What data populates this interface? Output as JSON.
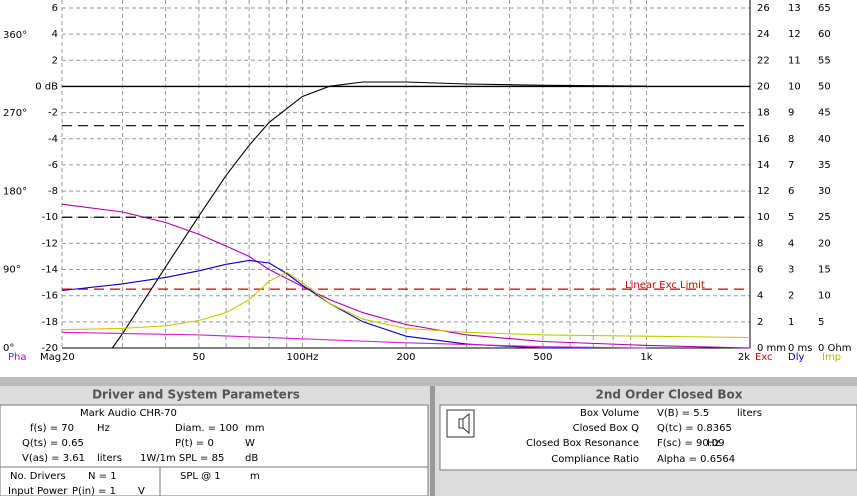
{
  "chart_data": {
    "type": "line",
    "xscale": "log",
    "xlim": [
      20,
      2000
    ],
    "xticks": [
      20,
      50,
      {
        "value": 100,
        "label": "100Hz"
      },
      200,
      500,
      {
        "value": 1000,
        "label": "1k"
      },
      {
        "value": 2000,
        "label": "2k"
      }
    ],
    "xgrid": [
      20,
      30,
      40,
      50,
      60,
      70,
      80,
      90,
      100,
      200,
      300,
      400,
      500,
      600,
      700,
      800,
      900,
      1000,
      2000
    ],
    "ylim": [
      -20,
      6
    ],
    "yticks": [
      -20,
      -18,
      -16,
      -14,
      -12,
      -10,
      -8,
      -6,
      -4,
      -2,
      {
        "value": 0,
        "label": "0 dB"
      },
      2,
      4,
      6
    ],
    "grid": true,
    "phase_lim": [
      0,
      391
    ],
    "phase_ticks": [
      {
        "value": 0,
        "label": "0°"
      },
      {
        "value": 90,
        "label": "90°"
      },
      {
        "value": 180,
        "label": "180°"
      },
      {
        "value": 270,
        "label": "270°"
      },
      {
        "value": 360,
        "label": "360°"
      }
    ],
    "exc_lim": [
      0,
      26
    ],
    "exc_ticks": [
      {
        "value": 0,
        "label": "0 mm"
      },
      2,
      4,
      6,
      8,
      10,
      12,
      14,
      16,
      18,
      20,
      22,
      24,
      26
    ],
    "dly_lim": [
      0,
      13
    ],
    "dly_ticks": [
      {
        "value": 0,
        "label": "0 ms"
      },
      1,
      2,
      3,
      4,
      5,
      6,
      7,
      8,
      9,
      10,
      11,
      12,
      13
    ],
    "imp_lim": [
      0,
      65
    ],
    "imp_ticks": [
      {
        "value": 0,
        "label": "0 Ohm"
      },
      5,
      10,
      15,
      20,
      25,
      30,
      35,
      40,
      45,
      50,
      55,
      60,
      65
    ],
    "axis_names": [
      {
        "text": "Pha",
        "color": "#c000c0"
      },
      {
        "text": "Mag",
        "color": "#000000"
      },
      {
        "text": "Exc",
        "color": "#d00000"
      },
      {
        "text": "Dly",
        "color": "#0000c0"
      },
      {
        "text": "Imp",
        "color": "#b8b800"
      }
    ],
    "reference_lines": [
      {
        "value": 0,
        "color": "#000000",
        "dashed": false
      },
      {
        "value": -3,
        "color": "#000000",
        "dashed": true
      },
      {
        "value": -10,
        "color": "#000000",
        "dashed": true
      },
      {
        "value": -15.5,
        "color": "#d00000",
        "dashed": true,
        "label": "Linear Exc Limit"
      }
    ],
    "series": [
      {
        "color": "#000000",
        "x": [
          28,
          30,
          40,
          50,
          60,
          70,
          80,
          100,
          120,
          150,
          200,
          300,
          500,
          1000
        ],
        "values": [
          -20,
          -18.9,
          -13.8,
          -9.9,
          -6.8,
          -4.5,
          -2.75,
          -0.77,
          0.02,
          0.34,
          0.34,
          0.19,
          0.09,
          0.02
        ]
      },
      {
        "color": "#b000b0",
        "x": [
          20,
          30,
          40,
          50,
          60,
          70,
          80,
          100,
          120,
          150,
          200,
          300,
          500,
          1000,
          2000
        ],
        "values": [
          -9,
          -9.6,
          -10.4,
          -11.3,
          -12.2,
          -13,
          -14,
          -15.3,
          -16.3,
          -17.3,
          -18.2,
          -19,
          -19.5,
          -19.8,
          -20
        ]
      },
      {
        "color": "#0000c0",
        "x": [
          20,
          30,
          40,
          50,
          60,
          70,
          80,
          90,
          100,
          120,
          150,
          200,
          300,
          500,
          700
        ],
        "values": [
          -15.6,
          -15.1,
          -14.6,
          -14.1,
          -13.6,
          -13.3,
          -13.5,
          -14.3,
          -15.2,
          -16.6,
          -18,
          -19.1,
          -19.7,
          -20,
          -20
        ]
      },
      {
        "color": "#c8c800",
        "x": [
          20,
          30,
          40,
          50,
          60,
          70,
          80,
          90,
          100,
          120,
          150,
          200,
          300,
          500,
          1000,
          2000
        ],
        "values": [
          -18.6,
          -18.5,
          -18.3,
          -17.9,
          -17.3,
          -16.3,
          -14.9,
          -14.2,
          -15,
          -16.6,
          -17.8,
          -18.5,
          -18.8,
          -19,
          -19.1,
          -19.2
        ]
      },
      {
        "color": "#d020d0",
        "x": [
          20,
          50,
          100,
          200,
          500,
          1000
        ],
        "values": [
          -18.8,
          -19,
          -19.3,
          -19.6,
          -19.9,
          -20
        ]
      }
    ]
  },
  "driver_panel": {
    "title": "Driver and System Parameters",
    "model": "Mark Audio CHR-70",
    "fields": [
      "f(s) = 70",
      "Hz",
      "Diam. = 100",
      "mm",
      "Q(ts) = 0.65",
      "P(t) = 0",
      "W",
      "V(as) = 3.61",
      "liters",
      "1W/1m SPL = 85",
      "dB",
      "No. Drivers",
      "N = 1",
      "SPL @ 1",
      "m",
      "Input Power",
      "P(in) = 1",
      "V"
    ]
  },
  "box_panel": {
    "title": "2nd Order Closed Box",
    "rows": [
      [
        "Box Volume",
        "V(B) = 5.5",
        "liters"
      ],
      [
        "Closed Box Q",
        "Q(tc) = 0.8365"
      ],
      [
        "Closed Box Resonance",
        "F(sc) = 90.09",
        "Hz"
      ],
      [
        "Compliance Ratio",
        "Alpha = 0.6564"
      ]
    ]
  }
}
